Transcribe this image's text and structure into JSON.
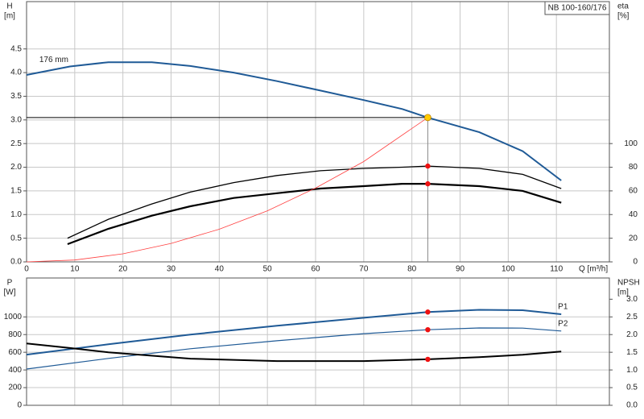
{
  "chart_data": [
    {
      "type": "line",
      "title": "NB 100-160/176",
      "x_label": "Q [m³/h]",
      "y_label": "H",
      "y_unit": "[m]",
      "y2_label": "eta",
      "y2_unit": "[%]",
      "xlim": [
        0,
        121
      ],
      "xticks": [
        0,
        10,
        20,
        30,
        40,
        50,
        60,
        70,
        80,
        90,
        100,
        110
      ],
      "ylim": [
        0,
        5.5
      ],
      "yticks": [
        {
          "value": 0,
          "label": "0.0"
        },
        0.5,
        {
          "value": 1,
          "label": "1.0"
        },
        1.5,
        {
          "value": 2,
          "label": "2.0"
        },
        2.5,
        {
          "value": 3,
          "label": "3.0"
        },
        3.5,
        {
          "value": 4,
          "label": "4.0"
        },
        4.5
      ],
      "y2lim": [
        0,
        220
      ],
      "y2ticks": [
        0,
        20,
        40,
        60,
        80,
        100
      ],
      "grid": true,
      "series": [
        {
          "name": "176 mm",
          "color": "#1f5a96",
          "width": 2,
          "x": [
            0,
            9,
            17,
            26,
            34,
            43,
            52,
            61,
            70,
            78,
            83.3,
            94,
            103,
            111
          ],
          "values": [
            3.95,
            4.13,
            4.22,
            4.22,
            4.14,
            4.0,
            3.82,
            3.62,
            3.42,
            3.23,
            3.05,
            2.74,
            2.34,
            1.72
          ]
        },
        {
          "color": "#000000",
          "width": 1.3,
          "axis": "y2",
          "x": [
            8.5,
            17,
            26,
            34,
            43,
            52,
            61,
            70,
            78,
            83.3,
            94,
            103,
            111
          ],
          "values": [
            20,
            36,
            49,
            59,
            67,
            73,
            77,
            79,
            80,
            81,
            79,
            74,
            62
          ]
        },
        {
          "color": "#000000",
          "width": 2.2,
          "axis": "y2",
          "x": [
            8.5,
            17,
            26,
            34,
            43,
            52,
            61,
            70,
            78,
            83.3,
            94,
            103,
            111
          ],
          "values": [
            15,
            28,
            39,
            47,
            54,
            58,
            62,
            64,
            66,
            66,
            64,
            60,
            50
          ]
        },
        {
          "color": "#ff4040",
          "width": 0.8,
          "x": [
            0,
            10,
            20,
            30,
            40,
            50,
            60,
            70,
            83.3
          ],
          "values": [
            0,
            0.04,
            0.17,
            0.39,
            0.69,
            1.08,
            1.56,
            2.12,
            3.05
          ]
        }
      ],
      "duty_point": {
        "x": 83.3,
        "y": 3.05,
        "color": "#ffcc00"
      },
      "points": [
        {
          "x": 83.3,
          "y": 81,
          "axis": "y2",
          "color": "#ee1111"
        },
        {
          "x": 83.3,
          "y": 66,
          "axis": "y2",
          "color": "#ee1111"
        }
      ]
    },
    {
      "type": "line",
      "y_label": "P",
      "y_unit": "[W]",
      "y2_label": "NPSH",
      "y2_unit": "[m]",
      "xlim": [
        0,
        121
      ],
      "ylim": [
        0,
        1440
      ],
      "yticks": [
        0,
        200,
        400,
        600,
        800,
        1000
      ],
      "y2lim": [
        0,
        3.6
      ],
      "y2ticks": [
        {
          "value": 0,
          "label": "0.0"
        },
        0.5,
        {
          "value": 1,
          "label": "1.0"
        },
        1.5,
        {
          "value": 2,
          "label": "2.0"
        },
        2.5,
        {
          "value": 3,
          "label": "3.0"
        }
      ],
      "grid": true,
      "series": [
        {
          "name": "P1",
          "color": "#1f5a96",
          "width": 2,
          "x": [
            0,
            17,
            34,
            52,
            70,
            83.3,
            94,
            103,
            111
          ],
          "values": [
            573,
            690,
            800,
            900,
            990,
            1055,
            1080,
            1075,
            1030
          ]
        },
        {
          "name": "P2",
          "color": "#1f5a96",
          "width": 1.2,
          "x": [
            0,
            17,
            34,
            52,
            70,
            83.3,
            94,
            103,
            111
          ],
          "values": [
            410,
            530,
            640,
            730,
            810,
            855,
            875,
            873,
            840
          ]
        },
        {
          "color": "#000000",
          "width": 2,
          "axis": "y2",
          "x": [
            0,
            9,
            17,
            34,
            52,
            70,
            83.3,
            94,
            103,
            111
          ],
          "values": [
            1.75,
            1.62,
            1.5,
            1.32,
            1.25,
            1.25,
            1.3,
            1.36,
            1.43,
            1.52
          ]
        }
      ],
      "points": [
        {
          "x": 83.3,
          "y": 1055,
          "color": "#ee1111"
        },
        {
          "x": 83.3,
          "y": 855,
          "color": "#ee1111"
        },
        {
          "x": 83.3,
          "y": 1.3,
          "axis": "y2",
          "color": "#ee1111"
        }
      ]
    }
  ]
}
